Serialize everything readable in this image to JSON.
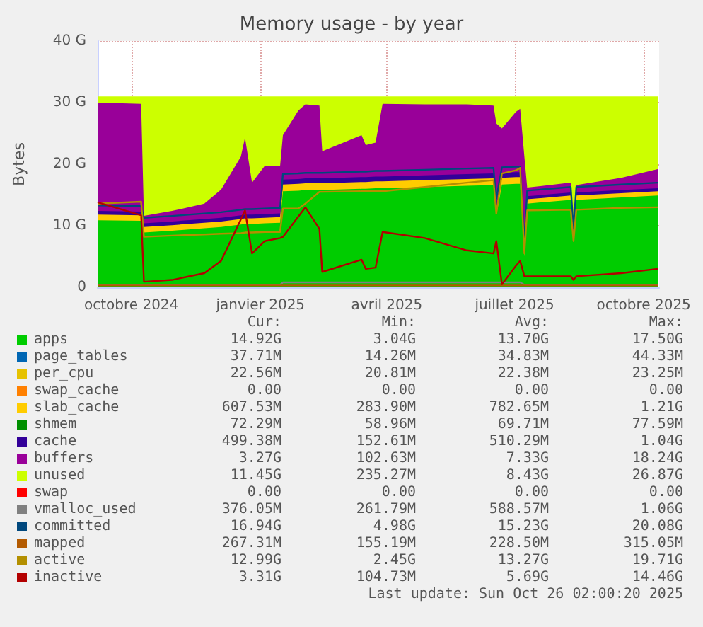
{
  "chart_data": {
    "type": "area",
    "stacked": true,
    "title": "Memory usage - by year",
    "ylabel": "Bytes",
    "grid": true,
    "legend": "bottom",
    "xlim": [
      "2024-09-21",
      "2025-10-26"
    ],
    "xticks": [
      {
        "value": "2024-10-15",
        "label": "octobre 2024"
      },
      {
        "value": "2025-01-15",
        "label": "janvier 2025"
      },
      {
        "value": "2025-04-15",
        "label": "avril 2025"
      },
      {
        "value": "2025-07-15",
        "label": "juillet 2025"
      },
      {
        "value": "2025-10-15",
        "label": "octobre 2025"
      }
    ],
    "ylim": [
      0,
      40
    ],
    "yticks": [
      0,
      {
        "value": 10,
        "label": "10 G"
      },
      {
        "value": 20,
        "label": "20 G"
      },
      {
        "value": 30,
        "label": "30 G"
      },
      {
        "value": 40,
        "label": "40 G"
      }
    ],
    "x": [
      "2024-09-21",
      "2024-10-22",
      "2024-10-24",
      "2024-11-13",
      "2024-12-06",
      "2024-12-18",
      "2025-01-01",
      "2025-01-04",
      "2025-01-09",
      "2025-01-18",
      "2025-01-29",
      "2025-01-31",
      "2025-02-11",
      "2025-02-16",
      "2025-02-26",
      "2025-02-28",
      "2025-03-28",
      "2025-03-31",
      "2025-04-07",
      "2025-04-12",
      "2025-05-12",
      "2025-06-11",
      "2025-06-30",
      "2025-07-02",
      "2025-07-06",
      "2025-07-16",
      "2025-07-19",
      "2025-07-22",
      "2025-07-24",
      "2025-08-24",
      "2025-08-26",
      "2025-08-28",
      "2025-09-29",
      "2025-10-25"
    ],
    "series": [
      {
        "name": "apps",
        "type": "area",
        "color": "#00cc00",
        "values": [
          10.9,
          10.8,
          8.9,
          9.2,
          9.6,
          9.8,
          10.2,
          10.3,
          10.3,
          10.4,
          10.5,
          15.6,
          15.7,
          15.8,
          15.8,
          15.8,
          16.0,
          16.0,
          16.1,
          16.1,
          16.3,
          16.5,
          16.6,
          11.6,
          16.7,
          16.8,
          16.8,
          5.0,
          13.6,
          14.2,
          7.5,
          14.2,
          14.6,
          14.9
        ]
      },
      {
        "name": "page_tables",
        "type": "area",
        "color": "#0066b3",
        "values": [
          null,
          null,
          null,
          null,
          null,
          null,
          null,
          null,
          null,
          null,
          null,
          null,
          null,
          null,
          null,
          null,
          null,
          null,
          null,
          null,
          null,
          null,
          null,
          null,
          null,
          null,
          null,
          null,
          null,
          null,
          null,
          null,
          null,
          null
        ]
      },
      {
        "name": "per_cpu",
        "type": "area",
        "color": "#e6c200",
        "values": [
          null,
          null,
          null,
          null,
          null,
          null,
          null,
          null,
          null,
          null,
          null,
          null,
          null,
          null,
          null,
          null,
          null,
          null,
          null,
          null,
          null,
          null,
          null,
          null,
          null,
          null,
          null,
          null,
          null,
          null,
          null,
          null,
          null,
          null
        ]
      },
      {
        "name": "swap_cache",
        "type": "area",
        "color": "#ff8000",
        "values": [
          null,
          null,
          null,
          null,
          null,
          null,
          null,
          null,
          null,
          null,
          null,
          null,
          null,
          null,
          null,
          null,
          null,
          null,
          null,
          null,
          null,
          null,
          null,
          null,
          null,
          null,
          null,
          null,
          null,
          null,
          null,
          null,
          null,
          null
        ]
      },
      {
        "name": "slab_cache",
        "type": "area",
        "color": "#ffcc00",
        "values": [
          0.9,
          0.9,
          0.9,
          0.9,
          0.9,
          0.9,
          0.9,
          0.9,
          0.9,
          0.9,
          0.9,
          1.1,
          1.1,
          1.1,
          1.1,
          1.1,
          1.1,
          1.1,
          1.1,
          1.1,
          1.1,
          1.1,
          1.1,
          1.1,
          1.1,
          1.1,
          1.1,
          0.7,
          0.7,
          0.7,
          0.7,
          0.7,
          0.7,
          0.7
        ]
      },
      {
        "name": "shmem",
        "type": "area",
        "color": "#008f00",
        "values": [
          null,
          null,
          null,
          null,
          null,
          null,
          null,
          null,
          null,
          null,
          null,
          null,
          null,
          null,
          null,
          null,
          null,
          null,
          null,
          null,
          null,
          null,
          null,
          null,
          null,
          null,
          null,
          null,
          null,
          null,
          null,
          null,
          null,
          null
        ]
      },
      {
        "name": "cache",
        "type": "area",
        "color": "#330099",
        "values": [
          0.6,
          0.6,
          0.6,
          0.6,
          0.6,
          0.6,
          0.6,
          0.6,
          0.6,
          0.6,
          0.6,
          0.8,
          0.8,
          0.8,
          0.8,
          0.8,
          0.8,
          0.8,
          0.8,
          0.8,
          0.8,
          0.8,
          0.8,
          0.8,
          0.8,
          0.8,
          0.8,
          0.5,
          0.5,
          0.5,
          0.5,
          0.5,
          0.5,
          0.5
        ]
      },
      {
        "name": "buffers",
        "type": "area",
        "color": "#990099",
        "values": [
          17.6,
          17.5,
          1.2,
          1.7,
          2.5,
          4.6,
          9.5,
          12.5,
          5.2,
          7.8,
          7.7,
          7.2,
          11.1,
          12.0,
          11.8,
          4.4,
          6.8,
          5.2,
          5.5,
          11.8,
          11.5,
          11.3,
          11.0,
          13.1,
          7.2,
          9.8,
          10.3,
          15.0,
          1.4,
          1.6,
          1.4,
          1.2,
          2.0,
          3.1
        ]
      },
      {
        "name": "unused",
        "type": "area",
        "color": "#ccff00",
        "values": [
          1.0,
          1.2,
          19.4,
          18.6,
          17.4,
          15.1,
          9.8,
          6.7,
          14.0,
          11.3,
          11.3,
          6.3,
          2.3,
          1.3,
          1.5,
          8.9,
          6.3,
          7.9,
          7.5,
          1.2,
          1.3,
          1.3,
          1.5,
          4.4,
          5.2,
          2.5,
          2.0,
          9.8,
          14.8,
          14.0,
          20.9,
          14.4,
          13.2,
          11.8
        ]
      },
      {
        "name": "swap",
        "type": "area",
        "color": "#ff0000",
        "values": [
          null,
          null,
          null,
          null,
          null,
          null,
          null,
          null,
          null,
          null,
          null,
          null,
          null,
          null,
          null,
          null,
          null,
          null,
          null,
          null,
          null,
          null,
          null,
          null,
          null,
          null,
          null,
          null,
          null,
          null,
          null,
          null,
          null,
          null
        ]
      },
      {
        "name": "vmalloc_used",
        "type": "line",
        "color": "#808080",
        "values": [
          0.4,
          0.4,
          0.4,
          0.4,
          0.4,
          0.4,
          0.4,
          0.4,
          0.4,
          0.4,
          0.4,
          0.8,
          0.8,
          0.8,
          0.8,
          0.8,
          0.8,
          0.8,
          0.8,
          0.8,
          0.8,
          0.8,
          0.8,
          0.8,
          0.8,
          0.8,
          0.8,
          0.4,
          0.4,
          0.4,
          0.4,
          0.4,
          0.4,
          0.4
        ]
      },
      {
        "name": "committed",
        "type": "line",
        "color": "#00487d",
        "values": [
          13.3,
          13.2,
          11.3,
          11.6,
          12.0,
          12.2,
          12.6,
          12.7,
          12.7,
          12.8,
          12.9,
          18.4,
          18.5,
          18.6,
          18.6,
          18.6,
          18.8,
          18.8,
          18.9,
          18.9,
          19.1,
          19.3,
          19.4,
          14.4,
          19.5,
          19.6,
          19.6,
          7.1,
          15.7,
          16.3,
          9.6,
          16.3,
          16.7,
          17.0
        ]
      },
      {
        "name": "mapped",
        "type": "line",
        "color": "#b35a00",
        "values": [
          0.3,
          0.3,
          0.3,
          0.3,
          0.3,
          0.3,
          0.3,
          0.3,
          0.3,
          0.3,
          0.3,
          0.3,
          0.3,
          0.3,
          0.3,
          0.3,
          0.3,
          0.3,
          0.3,
          0.3,
          0.3,
          0.3,
          0.3,
          0.3,
          0.3,
          0.3,
          0.3,
          0.3,
          0.3,
          0.3,
          0.3,
          0.3,
          0.3,
          0.3
        ]
      },
      {
        "name": "active",
        "type": "line",
        "color": "#b38f00",
        "values": [
          13.6,
          13.9,
          8.2,
          8.4,
          8.6,
          8.7,
          8.8,
          8.9,
          8.9,
          9.0,
          9.0,
          12.8,
          12.8,
          13.6,
          15.5,
          15.5,
          15.6,
          15.6,
          15.6,
          15.6,
          16.3,
          17.0,
          17.4,
          12.0,
          18.5,
          19.0,
          19.4,
          5.5,
          12.5,
          12.6,
          7.5,
          12.6,
          12.9,
          13.0
        ]
      },
      {
        "name": "inactive",
        "type": "line",
        "color": "#b30000",
        "values": [
          13.8,
          11.7,
          0.9,
          1.2,
          2.3,
          4.3,
          11.0,
          12.5,
          5.5,
          7.5,
          8.0,
          8.2,
          11.5,
          13.0,
          9.5,
          2.5,
          4.5,
          3.0,
          3.2,
          9.0,
          8.0,
          6.0,
          5.5,
          7.5,
          0.5,
          3.5,
          4.3,
          1.8,
          1.8,
          1.8,
          1.2,
          1.8,
          2.3,
          3.0
        ]
      }
    ],
    "annotations": [
      "Cur:",
      "Min:",
      "Avg:",
      "Max:",
      "14.92G",
      "3.04G",
      "13.70G",
      "17.50G",
      "37.71M",
      "14.26M",
      "34.83M",
      "44.33M",
      "22.56M",
      "20.81M",
      "22.38M",
      "23.25M",
      "0.00",
      "0.00",
      "0.00",
      "0.00",
      "607.53M",
      "283.90M",
      "782.65M",
      "1.21G",
      "72.29M",
      "58.96M",
      "69.71M",
      "77.59M",
      "499.38M",
      "152.61M",
      "510.29M",
      "1.04G",
      "3.27G",
      "102.63M",
      "7.33G",
      "18.24G",
      "11.45G",
      "235.27M",
      "8.43G",
      "26.87G",
      "0.00",
      "0.00",
      "0.00",
      "0.00",
      "376.05M",
      "261.79M",
      "588.57M",
      "1.06G",
      "16.94G",
      "4.98G",
      "15.23G",
      "20.08G",
      "267.31M",
      "155.19M",
      "228.50M",
      "315.05M",
      "12.99G",
      "2.45G",
      "13.27G",
      "19.71G",
      "3.31G",
      "104.73M",
      "5.69G",
      "14.46G",
      "Last update: Sun Oct 26 02:00:20 2025"
    ]
  }
}
